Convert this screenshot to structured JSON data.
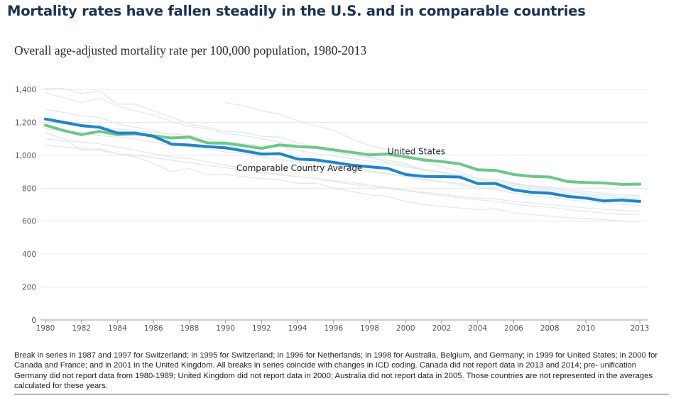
{
  "title": "Mortality rates have fallen steadily in the U.S. and in comparable countries",
  "subtitle": "Overall age-adjusted mortality rate per 100,000 population, 1980-2013",
  "note": "Break in series in 1987 and 1997 for Switzerland; in 1995 for Switzerland; in 1996 for Netherlands; in 1998 for Australia, Belgium, and Germany; in 1999 for United States; in 2000 for Canada and France; and in 2001 in the United Kingdom. All breaks in series coincide with changes in ICD coding. Canada did not report data in 2013 and 2014; pre- unification Germany did not report data from 1980-1989; United Kingdom did not report data in 2000; Australia did not report data in 2005. Those countries are not represented in the averages calculated for these years.",
  "colors": {
    "us": "#1f86c7",
    "comparable": "#6cc788",
    "background_countries": "#e3e8ec",
    "grid": "#e6e6e6",
    "axis": "#999999"
  },
  "chart_data": {
    "type": "line",
    "ylim": [
      0,
      1400
    ],
    "xlim": [
      1980,
      2013
    ],
    "y_ticks": [
      "0",
      "200",
      "400",
      "600",
      "800",
      "1,000",
      "1,200",
      "1,400"
    ],
    "x_ticks": [
      "1980",
      "1982",
      "1984",
      "1986",
      "1988",
      "1990",
      "1992",
      "1994",
      "1996",
      "1998",
      "2000",
      "2002",
      "2004",
      "2006",
      "2008",
      "2010",
      "2013"
    ],
    "series": [
      {
        "name": "United States",
        "x": [
          1980,
          1981,
          1982,
          1983,
          1984,
          1985,
          1986,
          1987,
          1988,
          1989,
          1990,
          1991,
          1992,
          1993,
          1994,
          1995,
          1996,
          1997,
          1998,
          1999,
          2000,
          2001,
          2002,
          2003,
          2004,
          2005,
          2006,
          2007,
          2008,
          2009,
          2010,
          2011,
          2012,
          2013
        ],
        "values": [
          1220,
          1200,
          1180,
          1170,
          1135,
          1135,
          1115,
          1068,
          1062,
          1053,
          1045,
          1027,
          1007,
          1010,
          977,
          972,
          957,
          940,
          930,
          920,
          883,
          872,
          870,
          868,
          828,
          828,
          790,
          775,
          770,
          750,
          740,
          723,
          728,
          720
        ]
      },
      {
        "name": "Comparable Country Average",
        "x": [
          1980,
          1981,
          1982,
          1983,
          1984,
          1985,
          1986,
          1987,
          1988,
          1989,
          1990,
          1991,
          1992,
          1993,
          1994,
          1995,
          1996,
          1997,
          1998,
          1999,
          2000,
          2001,
          2002,
          2003,
          2004,
          2005,
          2006,
          2007,
          2008,
          2009,
          2010,
          2011,
          2012,
          2013
        ],
        "values": [
          1183,
          1150,
          1125,
          1145,
          1125,
          1130,
          1118,
          1105,
          1110,
          1075,
          1073,
          1058,
          1042,
          1063,
          1053,
          1048,
          1033,
          1018,
          1003,
          1008,
          990,
          972,
          962,
          948,
          912,
          908,
          883,
          872,
          868,
          840,
          835,
          832,
          823,
          825
        ]
      }
    ],
    "background_series": [
      {
        "x": [
          1980,
          1981,
          1982,
          1983,
          1984,
          1985,
          1986,
          1987,
          1988,
          1989,
          1990,
          1991,
          1992,
          1993,
          1994,
          1995,
          1996,
          1997,
          1998,
          1999,
          2000,
          2001,
          2002,
          2003,
          2004,
          2005,
          2006,
          2007,
          2008,
          2009,
          2010,
          2011,
          2012,
          2013
        ],
        "values": [
          1405,
          1405,
          1375,
          1390,
          1310,
          1310,
          1270,
          1230,
          1190,
          1170,
          1145,
          1140,
          1115,
          1110,
          1075,
          1050,
          1030,
          1000,
          990,
          970,
          950,
          915,
          900,
          880,
          860,
          850,
          825,
          800,
          790,
          770,
          760,
          750,
          740,
          735
        ]
      },
      {
        "x": [
          1980,
          1981,
          1982,
          1983,
          1984,
          1985,
          1986,
          1987,
          1988,
          1989,
          1990,
          1991,
          1992,
          1993,
          1994,
          1995,
          1996,
          1997,
          1998,
          1999,
          2000,
          2001,
          2002,
          2003,
          2004,
          2005,
          2006,
          2007,
          2008,
          2009,
          2010,
          2011,
          2012,
          2013
        ],
        "values": [
          1380,
          1350,
          1320,
          1345,
          1300,
          1270,
          1245,
          1205,
          1175,
          1160,
          1130,
          1120,
          1100,
          1080,
          1060,
          1040,
          1020,
          1000,
          985,
          960,
          940,
          910,
          895,
          870,
          850,
          840,
          815,
          790,
          780,
          760,
          750,
          740,
          730,
          725
        ]
      },
      {
        "x": [
          1980,
          1981,
          1982,
          1983,
          1984,
          1985,
          1986,
          1987,
          1988,
          1989,
          1990,
          1991,
          1992,
          1993,
          1994,
          1995,
          1996,
          1997,
          1998,
          1999,
          2000,
          2001,
          2002,
          2003,
          2004,
          2005,
          2006,
          2007,
          2008,
          2009,
          2010,
          2011,
          2012,
          2013
        ],
        "values": [
          1280,
          1260,
          1240,
          1230,
          1190,
          1170,
          1150,
          1120,
          1090,
          1070,
          1060,
          1040,
          1020,
          1000,
          980,
          965,
          945,
          925,
          905,
          890,
          870,
          850,
          840,
          820,
          800,
          790,
          770,
          755,
          745,
          730,
          720,
          710,
          700,
          695
        ]
      },
      {
        "x": [
          1980,
          1981,
          1982,
          1983,
          1984,
          1985,
          1986,
          1987,
          1988,
          1989,
          1990,
          1991,
          1992,
          1993,
          1994,
          1995,
          1996,
          1997,
          1998,
          1999,
          2000,
          2001,
          2002,
          2003,
          2004,
          2005,
          2006,
          2007,
          2008,
          2009,
          2010,
          2011,
          2012,
          2013
        ],
        "values": [
          1135,
          1100,
          1030,
          1040,
          1010,
          990,
          950,
          900,
          920,
          880,
          885,
          870,
          860,
          850,
          830,
          830,
          800,
          780,
          760,
          750,
          720,
          700,
          690,
          680,
          670,
          675,
          650,
          640,
          630,
          620,
          615,
          610,
          600,
          600
        ]
      },
      {
        "x": [
          1980,
          1981,
          1982,
          1983,
          1984,
          1985,
          1986,
          1987,
          1988,
          1989,
          1990,
          1991,
          1992,
          1993,
          1994,
          1995,
          1996,
          1997,
          1998,
          1999,
          2000,
          2001,
          2002,
          2003,
          2004,
          2005,
          2006,
          2007,
          2008,
          2009,
          2010,
          2011,
          2012,
          2013
        ],
        "values": [
          1100,
          1090,
          1080,
          1070,
          1050,
          1030,
          1010,
          990,
          980,
          960,
          940,
          920,
          900,
          885,
          870,
          860,
          840,
          825,
          810,
          800,
          785,
          770,
          755,
          740,
          730,
          720,
          705,
          690,
          685,
          670,
          660,
          650,
          640,
          640
        ]
      },
      {
        "x": [
          1980,
          1981,
          1982,
          1983,
          1984,
          1985,
          1986,
          1987,
          1988,
          1989,
          1990,
          1991,
          1992,
          1993,
          1994,
          1995,
          1996,
          1997,
          1998,
          1999,
          2000,
          2001,
          2002,
          2003,
          2004,
          2005,
          2006,
          2007,
          2008,
          2009,
          2010,
          2011,
          2012,
          2013
        ],
        "values": [
          1200,
          1190,
          1180,
          1170,
          1160,
          1150,
          1140,
          1130,
          1120,
          1100,
          1080,
          1070,
          1060,
          1050,
          1030,
          1010,
          995,
          980,
          965,
          950,
          930,
          910,
          895,
          880,
          860,
          850,
          830,
          815,
          805,
          790,
          780,
          770,
          760,
          755
        ]
      },
      {
        "x": [
          1980,
          1981,
          1982,
          1983,
          1984,
          1985,
          1986,
          1987,
          1988,
          1989,
          1990,
          1991,
          1992,
          1993,
          1994,
          1995,
          1996,
          1997,
          1998,
          1999,
          2000,
          2001,
          2002,
          2003,
          2004,
          2005,
          2006,
          2007,
          2008,
          2009,
          2010,
          2011,
          2012,
          2013
        ],
        "values": [
          1060,
          1050,
          1040,
          1030,
          1010,
          1000,
          985,
          970,
          955,
          940,
          925,
          910,
          895,
          880,
          870,
          860,
          845,
          835,
          820,
          805,
          790,
          775,
          765,
          750,
          740,
          735,
          720,
          710,
          700,
          690,
          680,
          672,
          665,
          660
        ]
      },
      {
        "x": [
          1980,
          1981,
          1982,
          1983,
          1984,
          1985,
          1986,
          1987,
          1988,
          1989,
          1990,
          1991,
          1992,
          1993,
          1994,
          1995,
          1996,
          1997,
          1998,
          1999,
          2000,
          2001,
          2002,
          2003,
          2004,
          2005,
          2006,
          2007,
          2008,
          2009,
          2010,
          2011,
          2012,
          2013
        ],
        "values": [
          1160,
          1150,
          1140,
          1120,
          1110,
          1100,
          1080,
          1060,
          1050,
          1040,
          1020,
          1010,
          990,
          975,
          960,
          940,
          930,
          915,
          900,
          885,
          870,
          855,
          840,
          830,
          810,
          800,
          785,
          770,
          760,
          750,
          735,
          725,
          715,
          710
        ]
      },
      {
        "x": [
          1990,
          1991,
          1992,
          1993,
          1994,
          1995,
          1996,
          1997,
          1998,
          1999,
          2000,
          2001,
          2002,
          2003,
          2004,
          2005,
          2006,
          2007,
          2008,
          2009,
          2010,
          2011,
          2012,
          2013
        ],
        "values": [
          1320,
          1300,
          1270,
          1250,
          1210,
          1180,
          1150,
          1100,
          1060,
          1030,
          1000,
          960,
          930,
          900,
          860,
          850,
          830,
          810,
          800,
          780,
          770,
          760,
          750,
          745
        ]
      }
    ],
    "labels": [
      {
        "text": "United States",
        "x": 1999,
        "y": 1005
      },
      {
        "text": "Comparable Country Average",
        "x": 1990.6,
        "y": 905
      }
    ]
  }
}
